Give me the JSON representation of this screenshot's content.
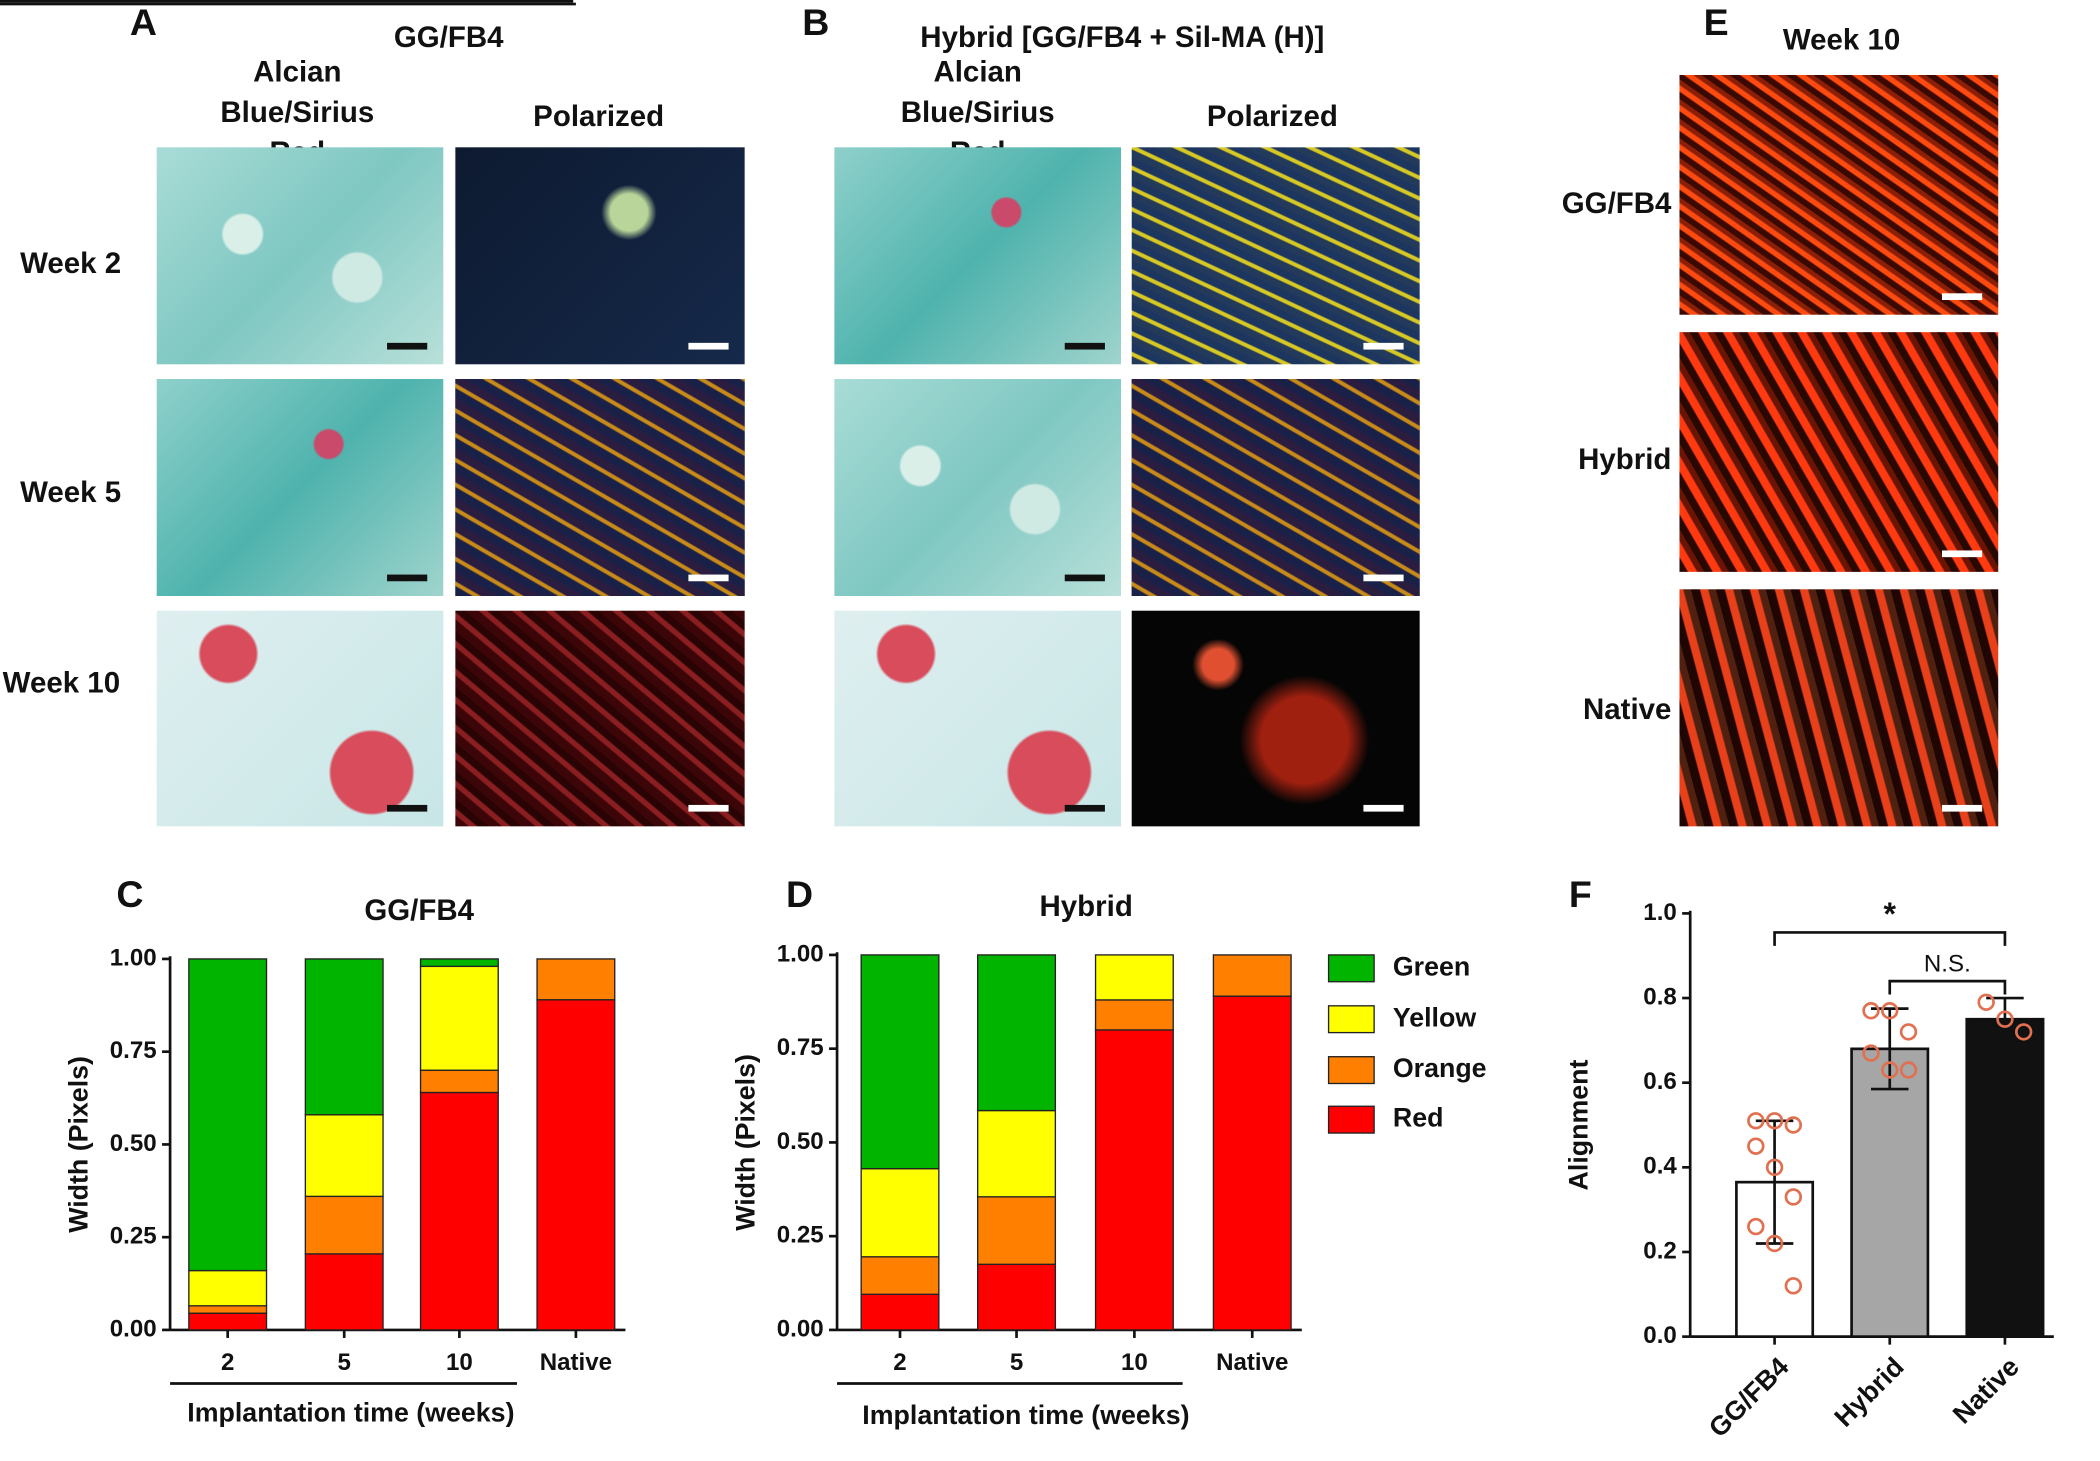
{
  "panels": {
    "A": {
      "letter": "A",
      "title": "GG/FB4",
      "columns": [
        "Alcian Blue/Sirius Red",
        "Polarized"
      ],
      "rows": [
        "Week 2",
        "Week 5",
        "Week 10"
      ]
    },
    "B": {
      "letter": "B",
      "title": "Hybrid [GG/FB4 + Sil-MA (H)]",
      "columns": [
        "Alcian Blue/Sirius Red",
        "Polarized"
      ]
    },
    "E": {
      "letter": "E",
      "title": "Week 10",
      "rows": [
        "GG/FB4",
        "Hybrid",
        "Native"
      ]
    }
  },
  "chart_data": [
    {
      "type": "bar",
      "stacked": true,
      "letter": "C",
      "title": "GG/FB4",
      "y_label": "Width (Pixels)",
      "x_label": "Implantation time (weeks)",
      "categories": [
        "2",
        "5",
        "10",
        "Native"
      ],
      "ylim": [
        0,
        1
      ],
      "yticks": [
        {
          "value": 0,
          "label": "0.00"
        },
        {
          "value": 0.25,
          "label": "0.25"
        },
        {
          "value": 0.5,
          "label": "0.50"
        },
        {
          "value": 0.75,
          "label": "0.75"
        },
        {
          "value": 1,
          "label": "1.00"
        }
      ],
      "series": [
        {
          "color": "#ff0000",
          "values": [
            0.045,
            0.205,
            0.64,
            0.89
          ]
        },
        {
          "color": "#ff8000",
          "values": [
            0.02,
            0.155,
            0.06,
            0.11
          ]
        },
        {
          "color": "#ffff00",
          "values": [
            0.095,
            0.22,
            0.28,
            0
          ]
        },
        {
          "color": "#00b400",
          "values": [
            0.84,
            0.42,
            0.02,
            0
          ]
        }
      ]
    },
    {
      "type": "bar",
      "stacked": true,
      "letter": "D",
      "title": "Hybrid",
      "y_label": "Width (Pixels)",
      "x_label": "Implantation time (weeks)",
      "legend": true,
      "categories": [
        "2",
        "5",
        "10",
        "Native"
      ],
      "ylim": [
        0,
        1
      ],
      "yticks": [
        {
          "value": 0,
          "label": "0.00"
        },
        {
          "value": 0.25,
          "label": "0.25"
        },
        {
          "value": 0.5,
          "label": "0.50"
        },
        {
          "value": 0.75,
          "label": "0.75"
        },
        {
          "value": 1,
          "label": "1.00"
        }
      ],
      "series": [
        {
          "name": "Red",
          "color": "#ff0000",
          "values": [
            0.095,
            0.175,
            0.8,
            0.89
          ]
        },
        {
          "name": "Orange",
          "color": "#ff8000",
          "values": [
            0.1,
            0.18,
            0.08,
            0.11
          ]
        },
        {
          "name": "Yellow",
          "color": "#ffff00",
          "values": [
            0.235,
            0.23,
            0.12,
            0
          ]
        },
        {
          "name": "Green",
          "color": "#00b400",
          "values": [
            0.57,
            0.415,
            0,
            0
          ]
        }
      ]
    },
    {
      "type": "bar",
      "letter": "F",
      "y_label": "Alignment",
      "categories": [
        "GG/FB4",
        "Hybrid",
        "Native"
      ],
      "values": [
        0.365,
        0.68,
        0.75
      ],
      "errors": [
        0.145,
        0.095,
        0.05
      ],
      "colors": [
        "#ffffff",
        "#a6a6a6",
        "#111111"
      ],
      "point_color": "#e0704f",
      "points": [
        [
          0.51,
          0.51,
          0.5,
          0.45,
          0.4,
          0.33,
          0.26,
          0.22,
          0.12
        ],
        [
          0.77,
          0.77,
          0.72,
          0.67,
          0.63,
          0.63
        ],
        [
          0.79,
          0.75,
          0.72
        ]
      ],
      "ylim": [
        0,
        1
      ],
      "yticks": [
        {
          "value": 0,
          "label": "0.0"
        },
        {
          "value": 0.2,
          "label": "0.2"
        },
        {
          "value": 0.4,
          "label": "0.4"
        },
        {
          "value": 0.6,
          "label": "0.6"
        },
        {
          "value": 0.8,
          "label": "0.8"
        },
        {
          "value": 1,
          "label": "1.0"
        }
      ],
      "annotations": [
        {
          "from": 0,
          "to": 2,
          "label": "*"
        },
        {
          "from": 1,
          "to": 2,
          "label": "N.S."
        }
      ]
    }
  ]
}
